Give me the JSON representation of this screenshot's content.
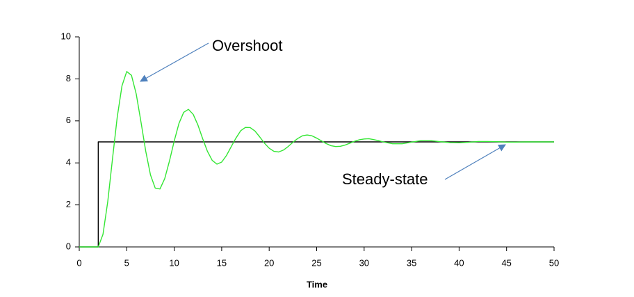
{
  "chart_data": {
    "type": "line",
    "xlabel": "Time",
    "xlim": [
      0,
      50
    ],
    "xticks": [
      0,
      5,
      10,
      15,
      20,
      25,
      30,
      35,
      40,
      45,
      50
    ],
    "ylim": [
      0,
      10
    ],
    "yticks": [
      0,
      2,
      4,
      6,
      8,
      10
    ],
    "grid": false,
    "series": [
      {
        "color": "#000000",
        "x": [
          0,
          2,
          2,
          50
        ],
        "values": [
          0,
          0,
          5,
          5
        ]
      },
      {
        "color": "#33e633",
        "x": [
          0,
          2,
          2.5,
          3,
          3.5,
          4,
          4.5,
          5,
          5.5,
          6,
          6.5,
          7,
          7.5,
          8,
          8.5,
          9,
          9.5,
          10,
          10.5,
          11,
          11.5,
          12,
          12.5,
          13,
          13.5,
          14,
          14.5,
          15,
          15.5,
          16,
          16.5,
          17,
          17.5,
          18,
          18.5,
          19,
          19.5,
          20,
          20.5,
          21,
          21.5,
          22,
          22.5,
          23,
          23.5,
          24,
          24.5,
          25,
          25.5,
          26,
          26.5,
          27,
          27.5,
          28,
          28.5,
          29,
          29.5,
          30,
          30.5,
          31,
          31.5,
          32,
          33,
          34,
          35,
          36,
          37,
          38,
          39,
          40,
          41,
          42,
          43,
          44,
          45,
          46,
          47,
          48,
          49,
          50
        ],
        "values": [
          0,
          0,
          0.6,
          2.15,
          4.19,
          6.18,
          7.67,
          8.35,
          8.17,
          7.28,
          5.95,
          4.56,
          3.43,
          2.8,
          2.76,
          3.25,
          4.09,
          5.04,
          5.88,
          6.41,
          6.55,
          6.31,
          5.8,
          5.15,
          4.55,
          4.12,
          3.94,
          4.04,
          4.35,
          4.77,
          5.18,
          5.53,
          5.69,
          5.68,
          5.52,
          5.24,
          4.94,
          4.7,
          4.55,
          4.52,
          4.61,
          4.78,
          4.98,
          5.16,
          5.29,
          5.33,
          5.29,
          5.18,
          5.05,
          4.92,
          4.82,
          4.78,
          4.79,
          4.85,
          4.94,
          5.03,
          5.1,
          5.14,
          5.15,
          5.11,
          5.06,
          5.0,
          4.91,
          4.91,
          4.99,
          5.06,
          5.06,
          5.01,
          4.97,
          4.96,
          4.98,
          5.02,
          5.02,
          5.01,
          4.99,
          4.99,
          5.0,
          5.0,
          5.0,
          5.0
        ]
      }
    ],
    "annotations": [
      "Overshoot",
      "Steady-state"
    ]
  }
}
